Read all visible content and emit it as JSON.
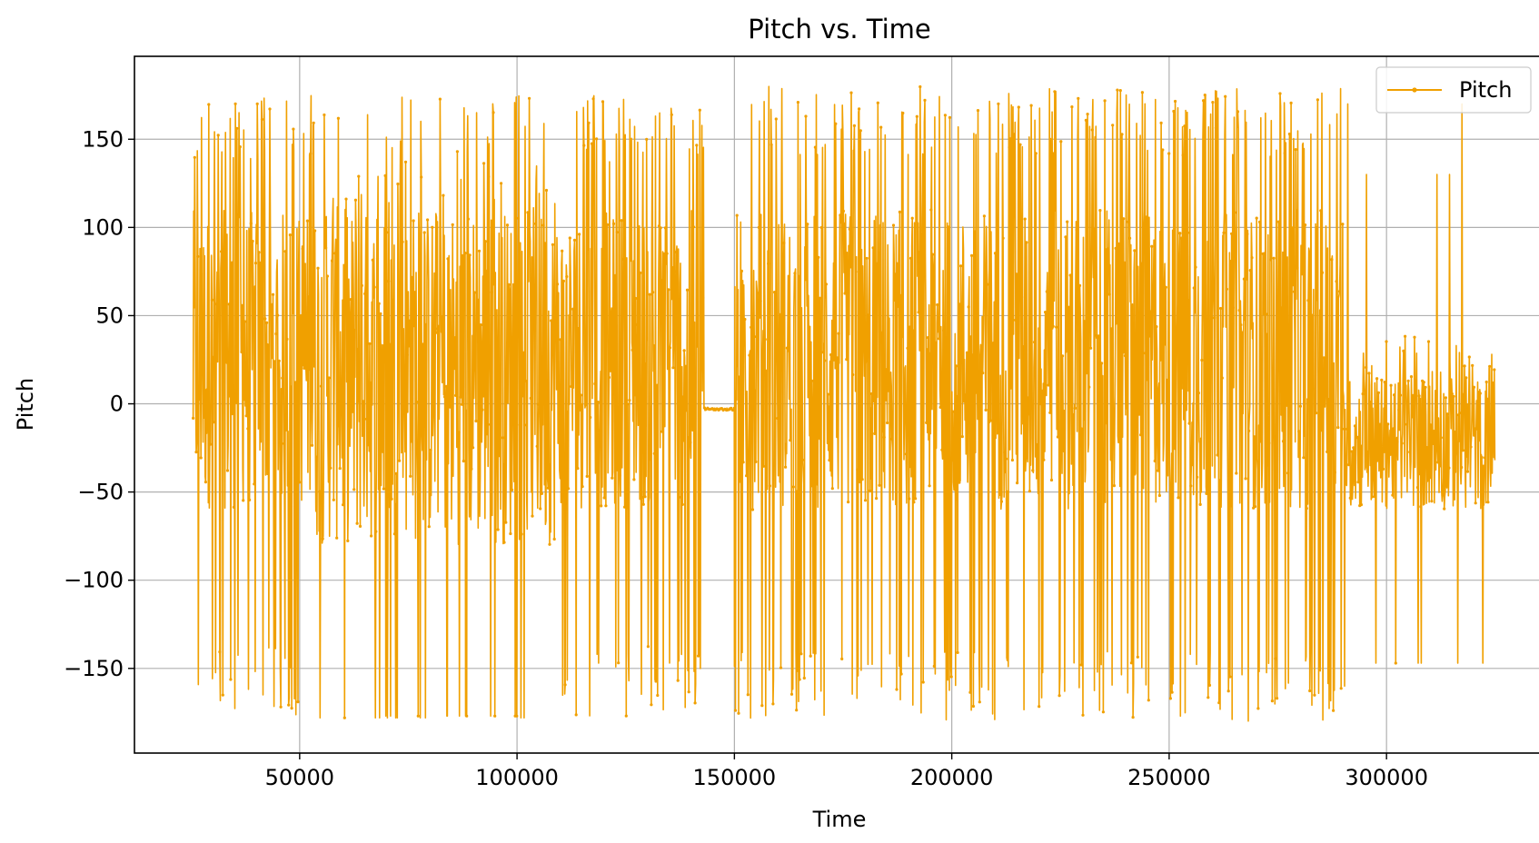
{
  "chart_data": {
    "type": "line",
    "title": "Pitch vs. Time",
    "xlabel": "Time",
    "ylabel": "Pitch",
    "xlim": [
      12000,
      338000
    ],
    "ylim": [
      -198,
      197
    ],
    "xticks": [
      50000,
      100000,
      150000,
      200000,
      250000,
      300000
    ],
    "xtick_labels": [
      "50000",
      "100000",
      "150000",
      "200000",
      "250000",
      "300000"
    ],
    "yticks": [
      150,
      100,
      50,
      0,
      -50,
      -100,
      -150
    ],
    "ytick_labels": [
      "150",
      "100",
      "50",
      "0",
      "−50",
      "−100",
      "−150"
    ],
    "grid": true,
    "legend_position": "top-right",
    "color": "#f0a000",
    "series": [
      {
        "name": "Pitch",
        "style": "line-with-small-markers",
        "x_range": [
          25500,
          325000
        ],
        "y_range": [
          -180,
          180
        ],
        "segments": [
          {
            "x": [
              25500,
              53500
            ],
            "amplitude": "full",
            "y_range": [
              -178,
              175
            ]
          },
          {
            "x": [
              53500,
              110000
            ],
            "amplitude": "moderate",
            "y_range": [
              -80,
              176
            ],
            "occasional_spikes": [
              -178,
              -177
            ]
          },
          {
            "x": [
              110000,
              143000
            ],
            "amplitude": "full",
            "y_range": [
              -177,
              177
            ]
          },
          {
            "x": [
              143000,
              150000
            ],
            "amplitude": "flat",
            "value": -3
          },
          {
            "x": [
              150000,
              290000
            ],
            "amplitude": "full",
            "y_range": [
              -180,
              180
            ]
          },
          {
            "x": [
              290000,
              325000
            ],
            "amplitude": "moderate",
            "y_range": [
              -60,
              40
            ],
            "occasional_spikes": [
              170,
              130,
              -160,
              -147
            ]
          }
        ]
      }
    ]
  }
}
